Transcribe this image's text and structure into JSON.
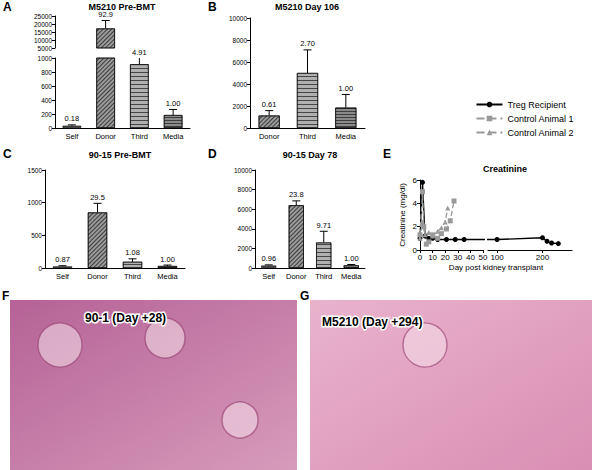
{
  "chart_data": [
    {
      "panel": "A",
      "type": "bar",
      "title": "M5210 Pre-BMT",
      "categories": [
        "Self",
        "Donor",
        "Third",
        "Media"
      ],
      "values": [
        33,
        17200,
        910,
        185
      ],
      "error": [
        12,
        5000,
        1100,
        80
      ],
      "annotations": [
        "0.18",
        "92.9",
        "4.91",
        "1.00"
      ],
      "colors": [
        "#555555",
        "#9a9a9a",
        "#b0b0b0",
        "#8a8a8a"
      ],
      "ylim": [
        0,
        25000
      ],
      "ybreak": [
        1000,
        5000
      ],
      "yticks": [
        0,
        200,
        400,
        600,
        800,
        1000,
        5000,
        10000,
        15000,
        20000,
        25000
      ]
    },
    {
      "panel": "B",
      "type": "bar",
      "title": "M5210 Day 106",
      "categories": [
        "Donor",
        "Third",
        "Media"
      ],
      "values": [
        1130,
        5000,
        1850
      ],
      "error": [
        450,
        2100,
        1200
      ],
      "annotations": [
        "0.61",
        "2.70",
        "1.00"
      ],
      "colors": [
        "#9a9a9a",
        "#b0b0b0",
        "#8a8a8a"
      ],
      "ylim": [
        0,
        10000
      ],
      "yticks": [
        0,
        2000,
        4000,
        6000,
        8000,
        10000
      ]
    },
    {
      "panel": "C",
      "type": "bar",
      "title": "90-15 Pre-BMT",
      "categories": [
        "Self",
        "Donor",
        "Third",
        "Media"
      ],
      "values": [
        25,
        850,
        95,
        30
      ],
      "error": [
        10,
        140,
        45,
        15
      ],
      "annotations": [
        "0.87",
        "29.5",
        "1.08",
        "1.00"
      ],
      "colors": [
        "#555555",
        "#9a9a9a",
        "#b0b0b0",
        "#8a8a8a"
      ],
      "ylim": [
        0,
        1500
      ],
      "yticks": [
        0,
        500,
        1000,
        1500
      ]
    },
    {
      "panel": "D",
      "type": "bar",
      "title": "90-15 Day 78",
      "categories": [
        "Self",
        "Donor",
        "Third",
        "Media"
      ],
      "values": [
        250,
        6400,
        2600,
        270
      ],
      "error": [
        70,
        450,
        1150,
        90
      ],
      "annotations": [
        "0.96",
        "23.8",
        "9.71",
        "1.00"
      ],
      "colors": [
        "#555555",
        "#9a9a9a",
        "#b0b0b0",
        "#8a8a8a"
      ],
      "ylim": [
        0,
        10000
      ],
      "yticks": [
        0,
        2000,
        4000,
        6000,
        8000,
        10000
      ]
    },
    {
      "panel": "E",
      "type": "line",
      "title": "Creatinine",
      "ylabel": "Creatinine (mg/dl)",
      "xlabel": "Day post kidney transplant",
      "ylim": [
        0,
        6
      ],
      "yticks": [
        0,
        2,
        4,
        6
      ],
      "xlim": [
        0,
        265
      ],
      "xbreak": [
        50,
        80
      ],
      "xticks": [
        0,
        10,
        20,
        30,
        40,
        50,
        100,
        200
      ],
      "legend": "right",
      "series": [
        {
          "name": "Treg Recipient",
          "color": "#000000",
          "marker": "circle",
          "line_style": "solid",
          "x": [
            0,
            2,
            4,
            7,
            10,
            14,
            21,
            28,
            35,
            100,
            200,
            210,
            220,
            235
          ],
          "values": [
            1.0,
            5.8,
            1.2,
            1.0,
            1.0,
            0.9,
            0.9,
            0.9,
            0.9,
            0.9,
            1.05,
            0.75,
            0.6,
            0.55
          ]
        },
        {
          "name": "Control Animal 1",
          "color": "#999999",
          "marker": "square",
          "line_style": "dashed",
          "x": [
            0,
            2,
            3,
            5,
            7,
            10,
            14,
            17,
            21,
            24,
            27
          ],
          "values": [
            1.3,
            5.0,
            2.0,
            0.5,
            0.7,
            1.3,
            1.0,
            1.4,
            1.8,
            2.5,
            4.2
          ]
        },
        {
          "name": "Control Animal 2",
          "color": "#999999",
          "marker": "triangle",
          "line_style": "dashed",
          "x": [
            0,
            2,
            4,
            7,
            10,
            14,
            17,
            20,
            22
          ],
          "values": [
            1.0,
            2.4,
            1.3,
            1.5,
            1.2,
            1.6,
            1.9,
            2.4,
            3.6
          ]
        }
      ]
    }
  ],
  "images": [
    {
      "panel": "F",
      "caption": "90-1 (Day +28)"
    },
    {
      "panel": "G",
      "caption": "M5210 (Day +294)"
    }
  ]
}
